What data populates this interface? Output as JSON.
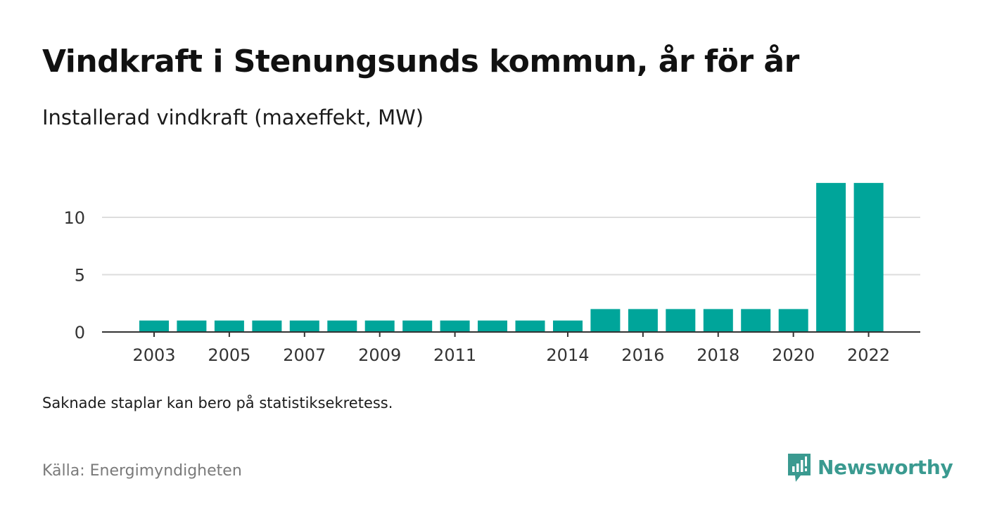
{
  "title": "Vindkraft i Stenungsunds kommun, år för år",
  "subtitle": "Installerad vindkraft (maxeffekt, MW)",
  "note": "Saknade staplar kan bero på statistiksekretess.",
  "source": "Källa: Energimyndigheten",
  "brand": {
    "name": "Newsworthy",
    "icon": "newsworthy-logo-icon",
    "color": "#3a9a90"
  },
  "colors": {
    "bar": "#00a59a",
    "grid": "#dddddd",
    "axis": "#333333"
  },
  "chart_data": {
    "type": "bar",
    "categories": [
      "2003",
      "2004",
      "2005",
      "2006",
      "2007",
      "2008",
      "2009",
      "2010",
      "2011",
      "2012",
      "2013",
      "2014",
      "2015",
      "2016",
      "2017",
      "2018",
      "2019",
      "2020",
      "2021",
      "2022"
    ],
    "values": [
      1,
      1,
      1,
      1,
      1,
      1,
      1,
      1,
      1,
      1,
      1,
      1,
      2,
      2,
      2,
      2,
      2,
      2,
      13,
      13
    ],
    "x_tick_labels": [
      "2003",
      "2005",
      "2007",
      "2009",
      "2011",
      "2014",
      "2016",
      "2018",
      "2020",
      "2022"
    ],
    "y_ticks": [
      0,
      5,
      10
    ],
    "ylim": [
      0,
      13
    ],
    "grid": true,
    "legend": "none"
  }
}
